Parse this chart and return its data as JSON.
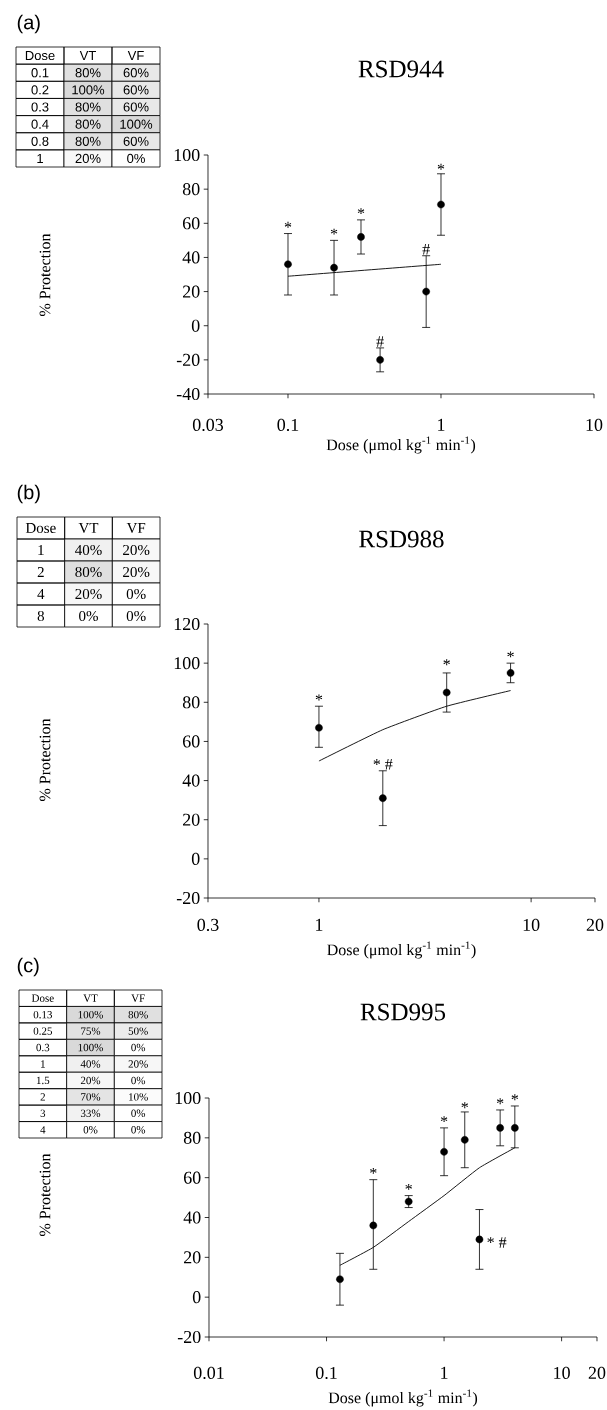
{
  "chart_data": [
    {
      "type": "heatmap",
      "title": "(a)",
      "ylabel": "Dose",
      "categories": [
        "VT",
        "VF"
      ],
      "y_categories": [
        "0.1",
        "0.2",
        "0.3",
        "0.4",
        "0.8",
        "1"
      ],
      "cells": [
        [
          80,
          60
        ],
        [
          100,
          60
        ],
        [
          80,
          60
        ],
        [
          80,
          100
        ],
        [
          80,
          60
        ],
        [
          20,
          0
        ]
      ],
      "cell_labels": [
        [
          "80%",
          "60%"
        ],
        [
          "100%",
          "60%"
        ],
        [
          "80%",
          "60%"
        ],
        [
          "80%",
          "100%"
        ],
        [
          "80%",
          "60%"
        ],
        [
          "20%",
          "0%"
        ]
      ]
    },
    {
      "type": "scatter",
      "title": "RSD944",
      "xlabel": "Dose (μmol kg$^{-1}$ min$^{-1}$)",
      "ylabel": "% Protection",
      "log": "x",
      "xlim": [
        0.03,
        10
      ],
      "xticks": [
        0.03,
        0.1,
        1,
        10
      ],
      "ylim": [
        -40,
        100
      ],
      "yticks": [
        -40,
        -20,
        0,
        20,
        40,
        60,
        80,
        100
      ],
      "series": [
        {
          "type": "scatter",
          "marker": "circle",
          "color": "#000000",
          "x": [
            0.1,
            0.2,
            0.3,
            0.4,
            0.8,
            1
          ],
          "values": [
            36,
            34,
            52,
            -20,
            20,
            71
          ],
          "errors": [
            18,
            16,
            10,
            7,
            21,
            18
          ]
        },
        {
          "type": "line",
          "marker": "none",
          "color": "#000000",
          "x": [
            0.1,
            1
          ],
          "values": [
            29,
            36
          ]
        }
      ],
      "annotations": [
        {
          "text": "*",
          "x": 0.1,
          "y": 54
        },
        {
          "text": "*",
          "x": 0.2,
          "y": 50
        },
        {
          "text": "*",
          "x": 0.3,
          "y": 62
        },
        {
          "text": "#",
          "x": 0.4,
          "y": -13
        },
        {
          "text": "#",
          "x": 0.8,
          "y": 41
        },
        {
          "text": "*",
          "x": 1,
          "y": 88
        }
      ]
    },
    {
      "type": "heatmap",
      "title": "(b)",
      "ylabel": "Dose",
      "categories": [
        "VT",
        "VF"
      ],
      "y_categories": [
        "1",
        "2",
        "4",
        "8"
      ],
      "cells": [
        [
          40,
          20
        ],
        [
          80,
          20
        ],
        [
          20,
          0
        ],
        [
          0,
          0
        ]
      ],
      "cell_labels": [
        [
          "40%",
          "20%"
        ],
        [
          "80%",
          "20%"
        ],
        [
          "20%",
          "0%"
        ],
        [
          "0%",
          "0%"
        ]
      ]
    },
    {
      "type": "scatter",
      "title": "RSD988",
      "xlabel": "Dose (μmol kg$^{-1}$ min$^{-1}$)",
      "ylabel": "% Protection",
      "log": "x",
      "xlim": [
        0.3,
        20
      ],
      "xticks": [
        0.3,
        1,
        10,
        20
      ],
      "ylim": [
        -20,
        120
      ],
      "yticks": [
        -20,
        0,
        20,
        40,
        60,
        80,
        100,
        120
      ],
      "series": [
        {
          "type": "scatter",
          "marker": "circle",
          "color": "#000000",
          "x": [
            1,
            2,
            4,
            8
          ],
          "values": [
            67,
            31,
            85,
            95
          ],
          "errors": [
            [
              57,
              78
            ],
            14,
            10,
            5
          ]
        },
        {
          "type": "line",
          "marker": "none",
          "color": "#000000",
          "x": [
            1,
            2,
            4,
            8
          ],
          "values": [
            50,
            66,
            78,
            86
          ]
        }
      ],
      "annotations": [
        {
          "text": "*",
          "x": 1,
          "y": 78
        },
        {
          "text": "* #",
          "x": 2,
          "y": 45
        },
        {
          "text": "*",
          "x": 4,
          "y": 96
        },
        {
          "text": "*",
          "x": 8,
          "y": 100
        }
      ]
    },
    {
      "type": "heatmap",
      "title": "(c)",
      "ylabel": "Dose",
      "categories": [
        "VT",
        "VF"
      ],
      "y_categories": [
        "0.13",
        "0.25",
        "0.3",
        "1",
        "1.5",
        "2",
        "3",
        "4"
      ],
      "cells": [
        [
          100,
          80
        ],
        [
          75,
          50
        ],
        [
          100,
          0
        ],
        [
          40,
          20
        ],
        [
          20,
          0
        ],
        [
          70,
          10
        ],
        [
          33,
          0
        ],
        [
          0,
          0
        ]
      ],
      "cell_labels": [
        [
          "100%",
          "80%"
        ],
        [
          "75%",
          "50%"
        ],
        [
          "100%",
          "0%"
        ],
        [
          "40%",
          "20%"
        ],
        [
          "20%",
          "0%"
        ],
        [
          "70%",
          "10%"
        ],
        [
          "33%",
          "0%"
        ],
        [
          "0%",
          "0%"
        ]
      ]
    },
    {
      "type": "scatter",
      "title": "RSD995",
      "xlabel": "Dose (μmol kg$^{-1}$ min$^{-1}$)",
      "ylabel": "% Protection",
      "log": "x",
      "xlim": [
        0.01,
        20
      ],
      "xticks": [
        0.01,
        0.1,
        1,
        10,
        20
      ],
      "ylim": [
        -20,
        100
      ],
      "yticks": [
        -20,
        0,
        20,
        40,
        60,
        80,
        100
      ],
      "series": [
        {
          "type": "scatter",
          "marker": "circle",
          "color": "#000000",
          "x": [
            0.13,
            0.25,
            0.5,
            1,
            1.5,
            2,
            3,
            4
          ],
          "values": [
            9,
            36,
            48,
            73,
            79,
            29,
            85,
            85
          ],
          "errors": [
            13,
            [
              14,
              59
            ],
            3,
            12,
            14,
            15,
            9,
            [
              75,
              96
            ]
          ]
        },
        {
          "type": "line",
          "marker": "none",
          "color": "#000000",
          "x": [
            0.13,
            0.25,
            0.5,
            1,
            2,
            4
          ],
          "values": [
            16,
            25,
            38,
            51,
            65,
            75
          ]
        }
      ],
      "annotations": [
        {
          "text": "*",
          "x": 0.25,
          "y": 59
        },
        {
          "text": "*",
          "x": 0.5,
          "y": 51
        },
        {
          "text": "*",
          "x": 1,
          "y": 85
        },
        {
          "text": "*",
          "x": 1.5,
          "y": 92
        },
        {
          "text": "*",
          "x": 3,
          "y": 94
        },
        {
          "text": "*",
          "x": 4,
          "y": 96
        },
        {
          "text": "* #",
          "x": 2,
          "y": 29
        }
      ]
    }
  ]
}
